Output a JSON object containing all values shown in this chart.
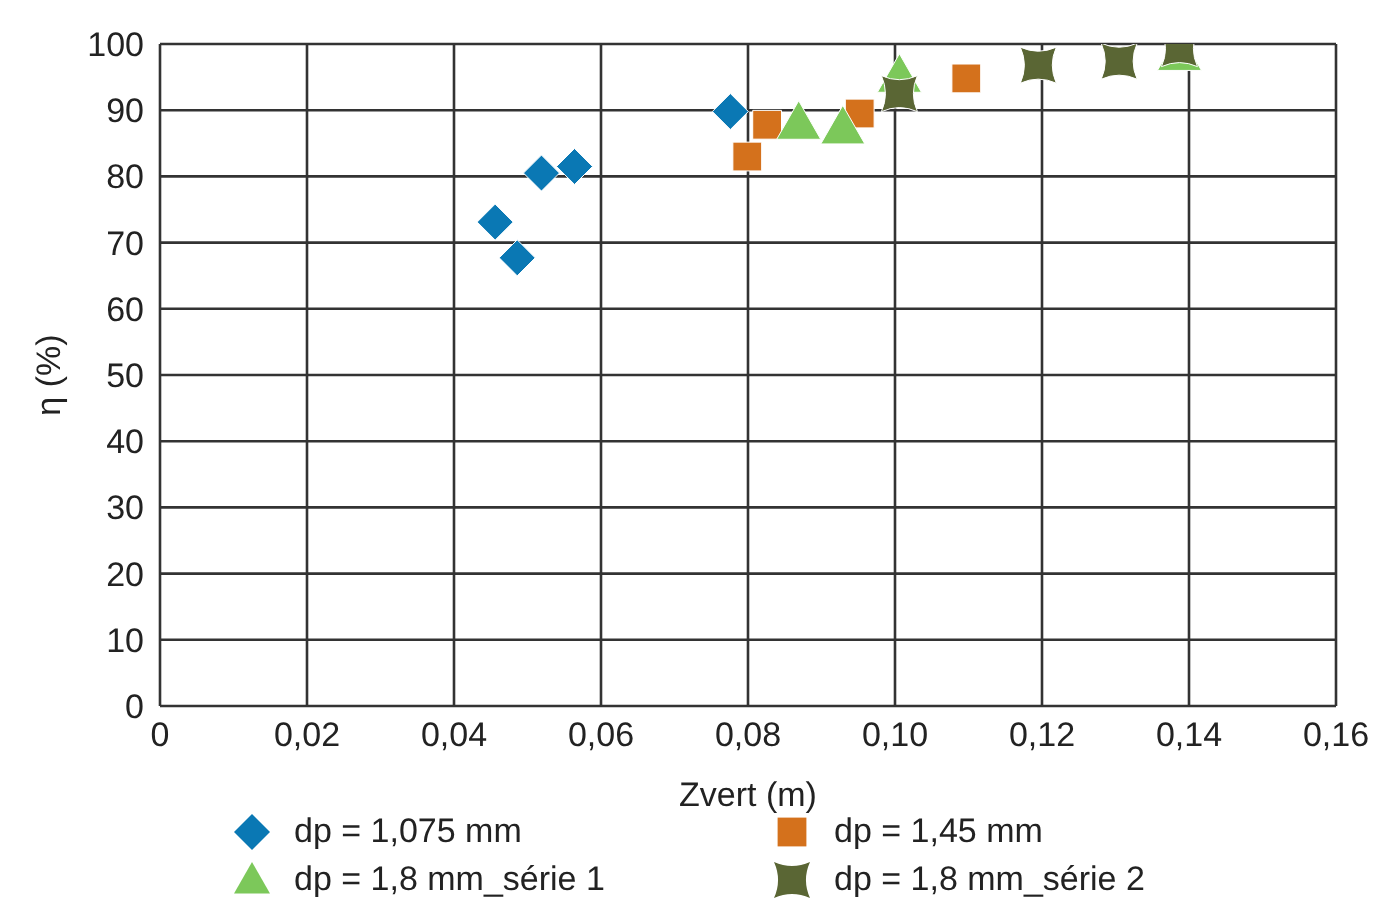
{
  "chart_data": {
    "type": "scatter",
    "xlabel": "Zvert (m)",
    "ylabel": "η (%)",
    "xlim": [
      0,
      0.16
    ],
    "xticks": [
      {
        "value": 0,
        "label": "0"
      },
      {
        "value": 0.02,
        "label": "0,02"
      },
      {
        "value": 0.04,
        "label": "0,04"
      },
      {
        "value": 0.06,
        "label": "0,06"
      },
      {
        "value": 0.08,
        "label": "0,08"
      },
      {
        "value": 0.1,
        "label": "0,10"
      },
      {
        "value": 0.12,
        "label": "0,12"
      },
      {
        "value": 0.14,
        "label": "0,14"
      },
      {
        "value": 0.16,
        "label": "0,16"
      }
    ],
    "ylim": [
      0,
      100
    ],
    "yticks": [
      0,
      10,
      20,
      30,
      40,
      50,
      60,
      70,
      80,
      90,
      100
    ],
    "grid": true,
    "legend": "bottom",
    "series": [
      {
        "name": "dp = 1,075 mm",
        "color": "#0a78b4",
        "marker": "diamond",
        "x": [
          0.0456,
          0.0486,
          0.0519,
          0.0564,
          0.0776
        ],
        "values": [
          73.1,
          67.7,
          80.5,
          81.5,
          89.8
        ]
      },
      {
        "name": "dp = 1,45 mm",
        "color": "#d4711c",
        "marker": "square",
        "x": [
          0.0799,
          0.0826,
          0.0952,
          0.1097
        ],
        "values": [
          83.0,
          87.8,
          89.5,
          94.8
        ]
      },
      {
        "name": "dp = 1,8 mm_série 1",
        "color": "#7cc85a",
        "marker": "triangle",
        "x": [
          0.0869,
          0.0929,
          0.1006,
          0.1387
        ],
        "values": [
          88.1,
          87.4,
          95.2,
          98.5
        ]
      },
      {
        "name": "dp = 1,8 mm_série 2",
        "color": "#5a6634",
        "marker": "star",
        "x": [
          0.1006,
          0.1195,
          0.1305,
          0.1387
        ],
        "values": [
          92.5,
          96.8,
          97.4,
          99.3
        ]
      }
    ]
  }
}
